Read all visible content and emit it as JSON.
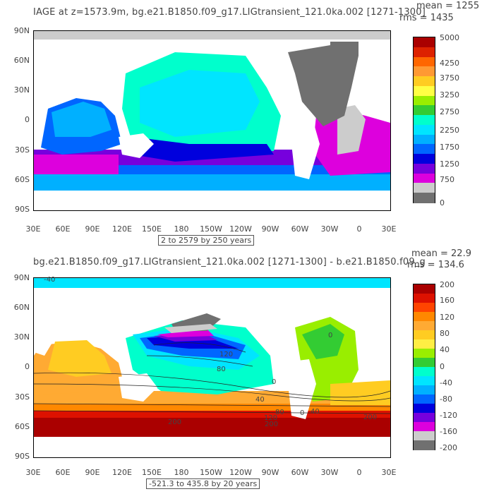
{
  "panel1": {
    "title": "IAGE at z=1573.9m, bg.e21.B1850.f09_g17.LIGtransient_121.0ka.002 [1271-1300]",
    "mean": "mean = 1255",
    "rms": "rms = 1435",
    "range": "2 to 2579 by 250 years",
    "lat_labels": [
      "90N",
      "60N",
      "30N",
      "0",
      "30S",
      "60S",
      "90S"
    ],
    "lon_labels": [
      "30E",
      "60E",
      "90E",
      "120E",
      "150E",
      "180",
      "150W",
      "120W",
      "90W",
      "60W",
      "30W",
      "0",
      "30E"
    ],
    "colorbar_labels": [
      "5000",
      "4250",
      "3750",
      "3250",
      "2750",
      "2250",
      "1750",
      "1250",
      "750",
      "0"
    ],
    "colorbar_colors": [
      "#aa0000",
      "#dd2200",
      "#ff6600",
      "#ff9933",
      "#ffcc22",
      "#ffff44",
      "#99ee00",
      "#33cc33",
      "#00ffcc",
      "#00e5ff",
      "#00b0ff",
      "#0066ff",
      "#0000dd",
      "#7700dd",
      "#dd00dd",
      "#cccccc",
      "#707070"
    ],
    "contour_labels": []
  },
  "panel2": {
    "title": "bg.e21.B1850.f09_g17.LIGtransient_121.0ka.002 [1271-1300] - b.e21.B1850.f09_g",
    "mean": "mean = 22.9",
    "rms": "rms = 134.6",
    "range": "-521.3 to 435.8 by 20 years",
    "lat_labels": [
      "90N",
      "60N",
      "30N",
      "0",
      "30S",
      "60S",
      "90S"
    ],
    "lon_labels": [
      "30E",
      "60E",
      "90E",
      "120E",
      "150E",
      "180",
      "150W",
      "120W",
      "90W",
      "60W",
      "30W",
      "0",
      "30E"
    ],
    "colorbar_labels": [
      "200",
      "160",
      "120",
      "80",
      "40",
      "0",
      "-40",
      "-80",
      "-120",
      "-160",
      "-200"
    ],
    "colorbar_colors": [
      "#aa0000",
      "#dd1100",
      "#ff4400",
      "#ff8800",
      "#ffaa33",
      "#ffcc22",
      "#ffee44",
      "#99ee00",
      "#33cc33",
      "#00ffcc",
      "#00e5ff",
      "#00b0ff",
      "#0066ff",
      "#0000dd",
      "#7700dd",
      "#dd00dd",
      "#cccccc",
      "#707070"
    ],
    "contour_labels": [
      "-40",
      "0",
      "120",
      "80",
      "0",
      "40",
      "80",
      "120",
      "200",
      "200",
      "200",
      "40",
      "0"
    ]
  },
  "chart_data": [
    {
      "type": "heatmap",
      "title": "IAGE at z=1573.9m, bg.e21.B1850.f09_g17.LIGtransient_121.0ka.002 [1271-1300]",
      "xlabel": "",
      "ylabel": "",
      "x_ticks": [
        "30E",
        "60E",
        "90E",
        "120E",
        "150E",
        "180",
        "150W",
        "120W",
        "90W",
        "60W",
        "30W",
        "0",
        "30E"
      ],
      "y_ticks": [
        "90N",
        "60N",
        "30N",
        "0",
        "30S",
        "60S",
        "90S"
      ],
      "colorbar_ticks": [
        5000,
        4250,
        3750,
        3250,
        2750,
        2250,
        1750,
        1250,
        750,
        0
      ],
      "mean": 1255,
      "rms": 1435,
      "min": 2,
      "max": 2579,
      "interval": 250,
      "legend": "right"
    },
    {
      "type": "heatmap",
      "title": "bg.e21.B1850.f09_g17.LIGtransient_121.0ka.002 [1271-1300] - b.e21.B1850.f09_g",
      "xlabel": "",
      "ylabel": "",
      "x_ticks": [
        "30E",
        "60E",
        "90E",
        "120E",
        "150E",
        "180",
        "150W",
        "120W",
        "90W",
        "60W",
        "30W",
        "0",
        "30E"
      ],
      "y_ticks": [
        "90N",
        "60N",
        "30N",
        "0",
        "30S",
        "60S",
        "90S"
      ],
      "colorbar_ticks": [
        200,
        160,
        120,
        80,
        40,
        0,
        -40,
        -80,
        -120,
        -160,
        -200
      ],
      "mean": 22.9,
      "rms": 134.6,
      "min": -521.3,
      "max": 435.8,
      "interval": 20,
      "legend": "right"
    }
  ]
}
